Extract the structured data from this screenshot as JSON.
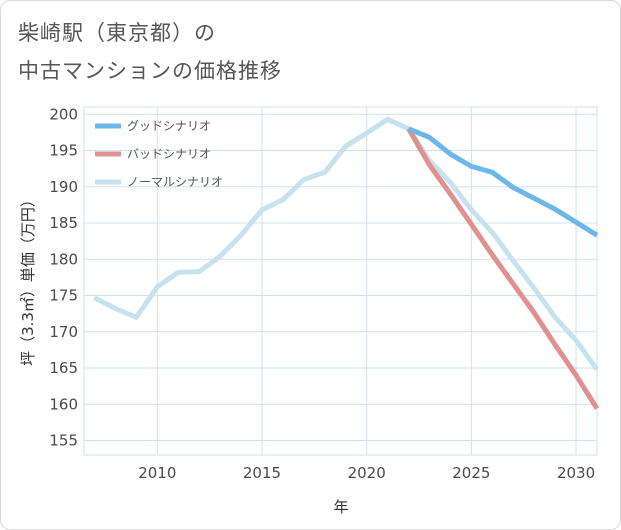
{
  "title": {
    "line1": "柴崎駅（東京都）の",
    "line2": "中古マンションの価格推移"
  },
  "chart_data": {
    "type": "line",
    "xlabel": "年",
    "ylabel": "坪（3.3㎡）単価（万円）",
    "xlim": [
      2006.5,
      2031
    ],
    "ylim": [
      153,
      201
    ],
    "x_ticks": [
      "2010",
      "2015",
      "2020",
      "2025",
      "2030"
    ],
    "y_ticks": [
      "155",
      "160",
      "165",
      "170",
      "175",
      "180",
      "185",
      "190",
      "195",
      "200"
    ],
    "grid": true,
    "legend_position": "top-left",
    "series": [
      {
        "name": "ノーマルシナリオ",
        "color": "#c6e2ee",
        "points": [
          [
            2007,
            174.7
          ],
          [
            2008,
            173.2
          ],
          [
            2009,
            172.0
          ],
          [
            2010,
            176.2
          ],
          [
            2011,
            178.2
          ],
          [
            2012,
            178.3
          ],
          [
            2013,
            180.4
          ],
          [
            2014,
            183.3
          ],
          [
            2015,
            186.8
          ],
          [
            2016,
            188.2
          ],
          [
            2017,
            191.0
          ],
          [
            2018,
            192.0
          ],
          [
            2019,
            195.6
          ],
          [
            2020,
            197.4
          ],
          [
            2021,
            199.3
          ],
          [
            2022,
            198.0
          ],
          [
            2023,
            193.6
          ],
          [
            2024,
            190.6
          ],
          [
            2025,
            186.8
          ],
          [
            2026,
            183.7
          ],
          [
            2027,
            179.8
          ],
          [
            2028,
            176.0
          ],
          [
            2029,
            172.0
          ],
          [
            2030,
            168.8
          ],
          [
            2031,
            164.8
          ]
        ]
      },
      {
        "name": "バッドシナリオ",
        "color": "#e0908f",
        "points": [
          [
            2022,
            198.0
          ],
          [
            2023,
            193.0
          ],
          [
            2024,
            189.0
          ],
          [
            2025,
            184.8
          ],
          [
            2026,
            180.6
          ],
          [
            2027,
            176.6
          ],
          [
            2028,
            172.6
          ],
          [
            2029,
            168.2
          ],
          [
            2030,
            164.0
          ],
          [
            2031,
            159.4
          ]
        ]
      },
      {
        "name": "グッドシナリオ",
        "color": "#6ab7e8",
        "points": [
          [
            2022,
            198.0
          ],
          [
            2023,
            196.8
          ],
          [
            2024,
            194.5
          ],
          [
            2025,
            192.8
          ],
          [
            2026,
            192.0
          ],
          [
            2027,
            189.9
          ],
          [
            2028,
            188.4
          ],
          [
            2029,
            186.9
          ],
          [
            2030,
            185.1
          ],
          [
            2031,
            183.3
          ]
        ]
      }
    ],
    "legend": [
      {
        "name": "グッドシナリオ",
        "color": "#6ab7e8"
      },
      {
        "name": "バッドシナリオ",
        "color": "#e0908f"
      },
      {
        "name": "ノーマルシナリオ",
        "color": "#c6e2ee"
      }
    ]
  }
}
